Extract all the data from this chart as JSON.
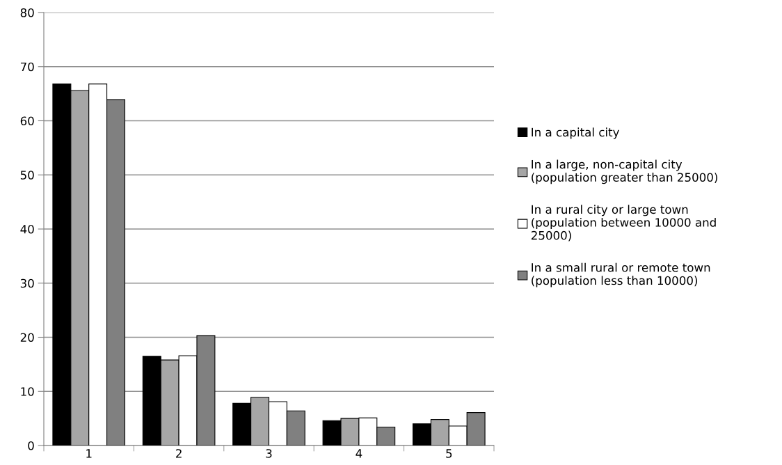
{
  "chart_data": {
    "type": "bar",
    "categories": [
      "1",
      "2",
      "3",
      "4",
      "5"
    ],
    "series": [
      {
        "name": "In a capital city",
        "color": "#000000",
        "values": [
          66.8,
          16.5,
          7.8,
          4.6,
          4.0
        ]
      },
      {
        "name": "In a large, non-capital city\n(population greater than 25000)",
        "color": "#a6a6a6",
        "values": [
          65.6,
          15.8,
          8.9,
          5.0,
          4.8
        ]
      },
      {
        "name": "In a rural city or large town\n(population between 10000 and\n25000)",
        "color": "#ffffff",
        "values": [
          66.8,
          16.6,
          8.1,
          5.1,
          3.6
        ]
      },
      {
        "name": "In a small rural or remote town\n(population less than 10000)",
        "color": "#808080",
        "values": [
          63.9,
          20.3,
          6.4,
          3.4,
          6.1
        ]
      }
    ],
    "ylim": [
      0,
      80
    ],
    "yticks": [
      0,
      10,
      20,
      30,
      40,
      50,
      60,
      70,
      80
    ],
    "grid": "y",
    "legend": "right"
  }
}
